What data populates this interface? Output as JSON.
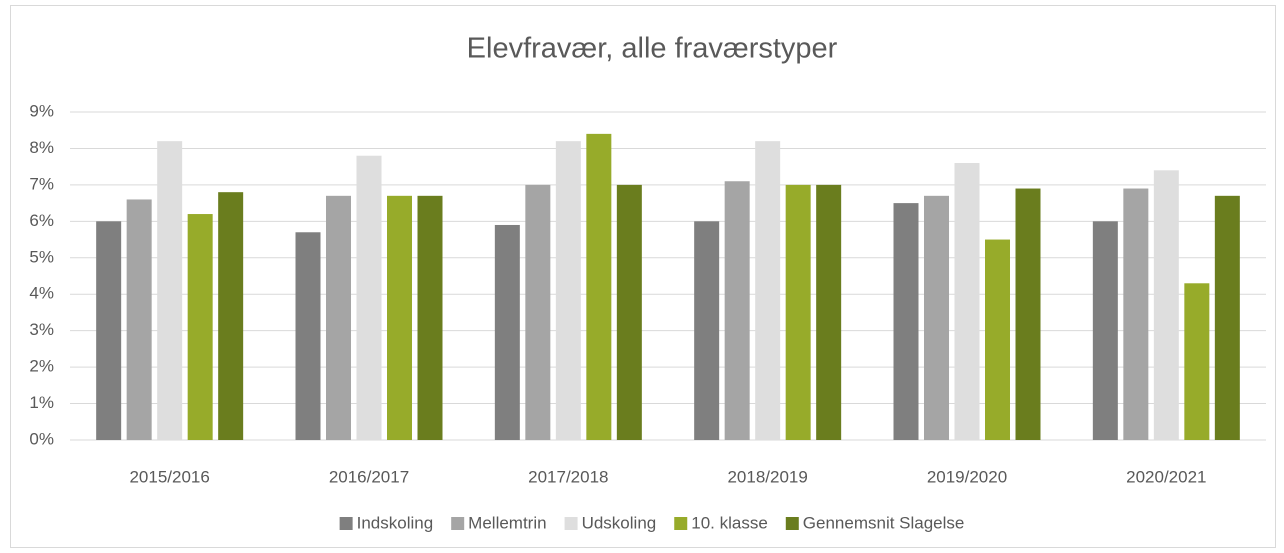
{
  "chart_data": {
    "type": "bar",
    "title": "Elevfravær, alle fraværstyper",
    "categories": [
      "2015/2016",
      "2016/2017",
      "2017/2018",
      "2018/2019",
      "2019/2020",
      "2020/2021"
    ],
    "series": [
      {
        "name": "Indskoling",
        "color": "#7f7f7f",
        "values": [
          6.0,
          5.7,
          5.9,
          6.0,
          6.5,
          6.0
        ]
      },
      {
        "name": "Mellemtrin",
        "color": "#a5a5a5",
        "values": [
          6.6,
          6.7,
          7.0,
          7.1,
          6.7,
          6.9
        ]
      },
      {
        "name": "Udskoling",
        "color": "#dedede",
        "values": [
          8.2,
          7.8,
          8.2,
          8.2,
          7.6,
          7.4
        ]
      },
      {
        "name": "10. klasse",
        "color": "#97ab2a",
        "values": [
          6.2,
          6.7,
          8.4,
          7.0,
          5.5,
          4.3
        ]
      },
      {
        "name": "Gennemsnit Slagelse",
        "color": "#6a7d1e",
        "values": [
          6.8,
          6.7,
          7.0,
          7.0,
          6.9,
          6.7
        ]
      }
    ],
    "ylim": [
      0,
      9
    ],
    "yticks": [
      {
        "value": 0,
        "label": "0%"
      },
      {
        "value": 1,
        "label": "1%"
      },
      {
        "value": 2,
        "label": "2%"
      },
      {
        "value": 3,
        "label": "3%"
      },
      {
        "value": 4,
        "label": "4%"
      },
      {
        "value": 5,
        "label": "5%"
      },
      {
        "value": 6,
        "label": "6%"
      },
      {
        "value": 7,
        "label": "7%"
      },
      {
        "value": 8,
        "label": "8%"
      },
      {
        "value": 9,
        "label": "9%"
      }
    ],
    "grid": true,
    "legend": "bottom"
  }
}
